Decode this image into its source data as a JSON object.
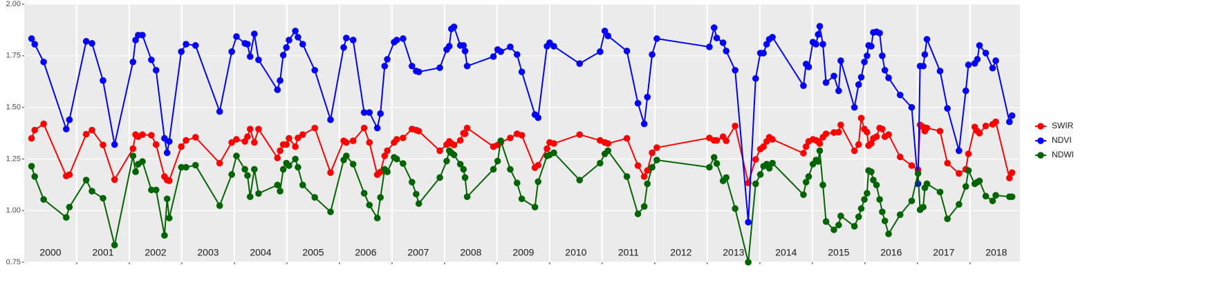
{
  "chart_data": {
    "type": "line",
    "x": [
      2000.14,
      2000.2,
      2000.37,
      2000.8,
      2000.86,
      2001.18,
      2001.29,
      2001.5,
      2001.72,
      2002.07,
      2002.12,
      2002.17,
      2002.25,
      2002.42,
      2002.51,
      2002.67,
      2002.72,
      2002.76,
      2002.99,
      2003.08,
      2003.26,
      2003.72,
      2003.95,
      2004.04,
      2004.2,
      2004.25,
      2004.3,
      2004.38,
      2004.46,
      2004.82,
      2004.87,
      2004.93,
      2004.99,
      2005.04,
      2005.16,
      2005.21,
      2005.3,
      2005.53,
      2005.83,
      2006.08,
      2006.13,
      2006.26,
      2006.47,
      2006.57,
      2006.72,
      2006.78,
      2006.86,
      2006.91,
      2007.04,
      2007.09,
      2007.21,
      2007.38,
      2007.46,
      2007.51,
      2007.91,
      2008.04,
      2008.09,
      2008.13,
      2008.18,
      2008.3,
      2008.36,
      2008.39,
      2008.43,
      2008.93,
      2009.01,
      2009.07,
      2009.25,
      2009.38,
      2009.47,
      2009.72,
      2009.78,
      2009.95,
      2010.0,
      2010.08,
      2010.57,
      2010.96,
      2011.05,
      2011.11,
      2011.47,
      2011.68,
      2011.8,
      2011.86,
      2011.95,
      2012.04,
      2013.04,
      2013.13,
      2013.18,
      2013.3,
      2013.36,
      2013.53,
      2013.78,
      2013.92,
      2014.01,
      2014.07,
      2014.13,
      2014.18,
      2014.24,
      2014.83,
      2014.88,
      2014.93,
      2015.01,
      2015.07,
      2015.11,
      2015.14,
      2015.2,
      2015.26,
      2015.41,
      2015.5,
      2015.54,
      2015.8,
      2015.88,
      2015.93,
      2015.99,
      2016.04,
      2016.07,
      2016.12,
      2016.16,
      2016.22,
      2016.28,
      2016.33,
      2016.38,
      2016.45,
      2016.67,
      2016.89,
      2017.01,
      2017.05,
      2017.11,
      2017.14,
      2017.18,
      2017.43,
      2017.57,
      2017.79,
      2017.92,
      2017.97,
      2018.09,
      2018.14,
      2018.18,
      2018.3,
      2018.43,
      2018.49,
      2018.75,
      2018.8
    ],
    "series": [
      {
        "name": "SWIR",
        "color": "#ff0000",
        "values": [
          1.35,
          1.39,
          1.42,
          1.168,
          1.174,
          1.37,
          1.39,
          1.318,
          1.15,
          1.3,
          1.368,
          1.358,
          1.368,
          1.365,
          1.32,
          1.165,
          1.148,
          1.145,
          1.31,
          1.34,
          1.355,
          1.23,
          1.33,
          1.345,
          1.335,
          1.358,
          1.395,
          1.33,
          1.395,
          1.255,
          1.29,
          1.32,
          1.32,
          1.35,
          1.31,
          1.352,
          1.368,
          1.4,
          1.184,
          1.338,
          1.33,
          1.338,
          1.4,
          1.33,
          1.174,
          1.187,
          1.265,
          1.29,
          1.33,
          1.345,
          1.352,
          1.395,
          1.39,
          1.385,
          1.29,
          1.32,
          1.335,
          1.325,
          1.318,
          1.34,
          1.375,
          1.372,
          1.4,
          1.31,
          1.318,
          1.33,
          1.352,
          1.372,
          1.365,
          1.208,
          1.22,
          1.3,
          1.33,
          1.325,
          1.368,
          1.34,
          1.33,
          1.325,
          1.35,
          1.218,
          1.165,
          1.194,
          1.28,
          1.305,
          1.352,
          1.34,
          1.34,
          1.358,
          1.338,
          1.41,
          1.134,
          1.248,
          1.298,
          1.31,
          1.335,
          1.355,
          1.345,
          1.278,
          1.31,
          1.335,
          1.345,
          1.34,
          1.335,
          1.325,
          1.355,
          1.372,
          1.378,
          1.38,
          1.415,
          1.29,
          1.32,
          1.448,
          1.395,
          1.38,
          1.315,
          1.325,
          1.35,
          1.358,
          1.4,
          1.395,
          1.358,
          1.368,
          1.26,
          1.218,
          1.198,
          1.415,
          1.405,
          1.385,
          1.4,
          1.385,
          1.23,
          1.18,
          1.2,
          1.275,
          1.405,
          1.385,
          1.375,
          1.41,
          1.418,
          1.43,
          1.158,
          1.184
        ]
      },
      {
        "name": "NDVI",
        "color": "#0000ff",
        "values": [
          1.833,
          1.806,
          1.72,
          1.395,
          1.44,
          1.82,
          1.81,
          1.63,
          1.32,
          1.72,
          1.826,
          1.85,
          1.85,
          1.73,
          1.68,
          1.35,
          1.28,
          1.335,
          1.77,
          1.806,
          1.8,
          1.48,
          1.77,
          1.843,
          1.81,
          1.806,
          1.746,
          1.856,
          1.73,
          1.585,
          1.63,
          1.753,
          1.79,
          1.826,
          1.87,
          1.84,
          1.806,
          1.68,
          1.44,
          1.79,
          1.836,
          1.826,
          1.475,
          1.475,
          1.4,
          1.47,
          1.7,
          1.733,
          1.816,
          1.826,
          1.833,
          1.7,
          1.676,
          1.672,
          1.692,
          1.78,
          1.796,
          1.88,
          1.89,
          1.8,
          1.8,
          1.773,
          1.7,
          1.746,
          1.78,
          1.77,
          1.793,
          1.756,
          1.672,
          1.465,
          1.45,
          1.796,
          1.813,
          1.796,
          1.712,
          1.77,
          1.87,
          1.846,
          1.773,
          1.52,
          1.42,
          1.55,
          1.756,
          1.833,
          1.793,
          1.886,
          1.836,
          1.813,
          1.773,
          1.68,
          0.944,
          1.64,
          1.763,
          1.763,
          1.806,
          1.83,
          1.84,
          1.605,
          1.71,
          1.696,
          1.816,
          1.806,
          1.853,
          1.893,
          1.806,
          1.62,
          1.652,
          1.58,
          1.726,
          1.5,
          1.61,
          1.646,
          1.72,
          1.75,
          1.8,
          1.796,
          1.863,
          1.866,
          1.86,
          1.75,
          1.68,
          1.643,
          1.56,
          1.5,
          1.13,
          1.7,
          1.7,
          1.756,
          1.83,
          1.676,
          1.495,
          1.29,
          1.58,
          1.706,
          1.713,
          1.733,
          1.8,
          1.763,
          1.69,
          1.726,
          1.43,
          1.46
        ]
      },
      {
        "name": "NDWI",
        "color": "#006400",
        "values": [
          1.215,
          1.165,
          1.054,
          0.967,
          1.017,
          1.148,
          1.094,
          1.06,
          0.833,
          1.265,
          1.188,
          1.225,
          1.238,
          1.1,
          1.1,
          0.88,
          1.057,
          0.964,
          1.21,
          1.21,
          1.22,
          1.024,
          1.175,
          1.265,
          1.2,
          1.17,
          1.067,
          1.2,
          1.083,
          1.124,
          1.094,
          1.2,
          1.23,
          1.218,
          1.25,
          1.21,
          1.124,
          1.064,
          0.994,
          1.245,
          1.265,
          1.225,
          1.084,
          1.027,
          0.964,
          1.064,
          1.2,
          1.188,
          1.258,
          1.25,
          1.228,
          1.138,
          1.08,
          1.034,
          1.16,
          1.24,
          1.29,
          1.28,
          1.27,
          1.225,
          1.2,
          1.16,
          1.067,
          1.2,
          1.24,
          1.338,
          1.2,
          1.134,
          1.057,
          1.017,
          1.14,
          1.265,
          1.27,
          1.28,
          1.148,
          1.23,
          1.275,
          1.29,
          1.165,
          0.984,
          1.02,
          1.13,
          1.21,
          1.245,
          1.21,
          1.258,
          1.228,
          1.144,
          1.16,
          1.01,
          0.75,
          1.13,
          1.175,
          1.215,
          1.225,
          1.205,
          1.23,
          1.077,
          1.138,
          1.165,
          1.225,
          1.245,
          1.238,
          1.29,
          1.124,
          0.947,
          0.907,
          0.93,
          0.974,
          0.924,
          0.97,
          1.01,
          1.054,
          1.084,
          1.194,
          1.188,
          1.148,
          1.124,
          1.054,
          0.994,
          0.95,
          0.887,
          0.98,
          1.047,
          1.18,
          1.004,
          1.017,
          1.11,
          1.13,
          1.09,
          0.96,
          1.03,
          1.117,
          1.194,
          1.13,
          1.138,
          1.144,
          1.07,
          1.047,
          1.074,
          1.067,
          1.067
        ]
      }
    ],
    "xlim": [
      2000,
      2018.95
    ],
    "xbreaks": [
      2001,
      2002,
      2003,
      2004,
      2005,
      2006,
      2007,
      2008,
      2009,
      2010,
      2011,
      2012,
      2013,
      2014,
      2015,
      2016,
      2017,
      2018
    ],
    "xticks": [
      {
        "value": 2000.5,
        "label": "2000"
      },
      {
        "value": 2001.5,
        "label": "2001"
      },
      {
        "value": 2002.5,
        "label": "2002"
      },
      {
        "value": 2003.5,
        "label": "2003"
      },
      {
        "value": 2004.5,
        "label": "2004"
      },
      {
        "value": 2005.5,
        "label": "2005"
      },
      {
        "value": 2006.5,
        "label": "2006"
      },
      {
        "value": 2007.5,
        "label": "2007"
      },
      {
        "value": 2008.5,
        "label": "2008"
      },
      {
        "value": 2009.5,
        "label": "2009"
      },
      {
        "value": 2010.5,
        "label": "2010"
      },
      {
        "value": 2011.5,
        "label": "2011"
      },
      {
        "value": 2012.5,
        "label": "2012"
      },
      {
        "value": 2013.5,
        "label": "2013"
      },
      {
        "value": 2014.5,
        "label": "2014"
      },
      {
        "value": 2015.5,
        "label": "2015"
      },
      {
        "value": 2016.5,
        "label": "2016"
      },
      {
        "value": 2017.5,
        "label": "2017"
      },
      {
        "value": 2018.5,
        "label": "2018"
      }
    ],
    "ylim": [
      0.75,
      2.0
    ],
    "yticks": [
      {
        "value": 0.75,
        "label": "0.75"
      },
      {
        "value": 1.0,
        "label": "1.00"
      },
      {
        "value": 1.25,
        "label": "1.25"
      },
      {
        "value": 1.5,
        "label": "1.50"
      },
      {
        "value": 1.75,
        "label": "1.75"
      },
      {
        "value": 2.0,
        "label": "2.00"
      }
    ],
    "grid": true,
    "legend": "right"
  }
}
